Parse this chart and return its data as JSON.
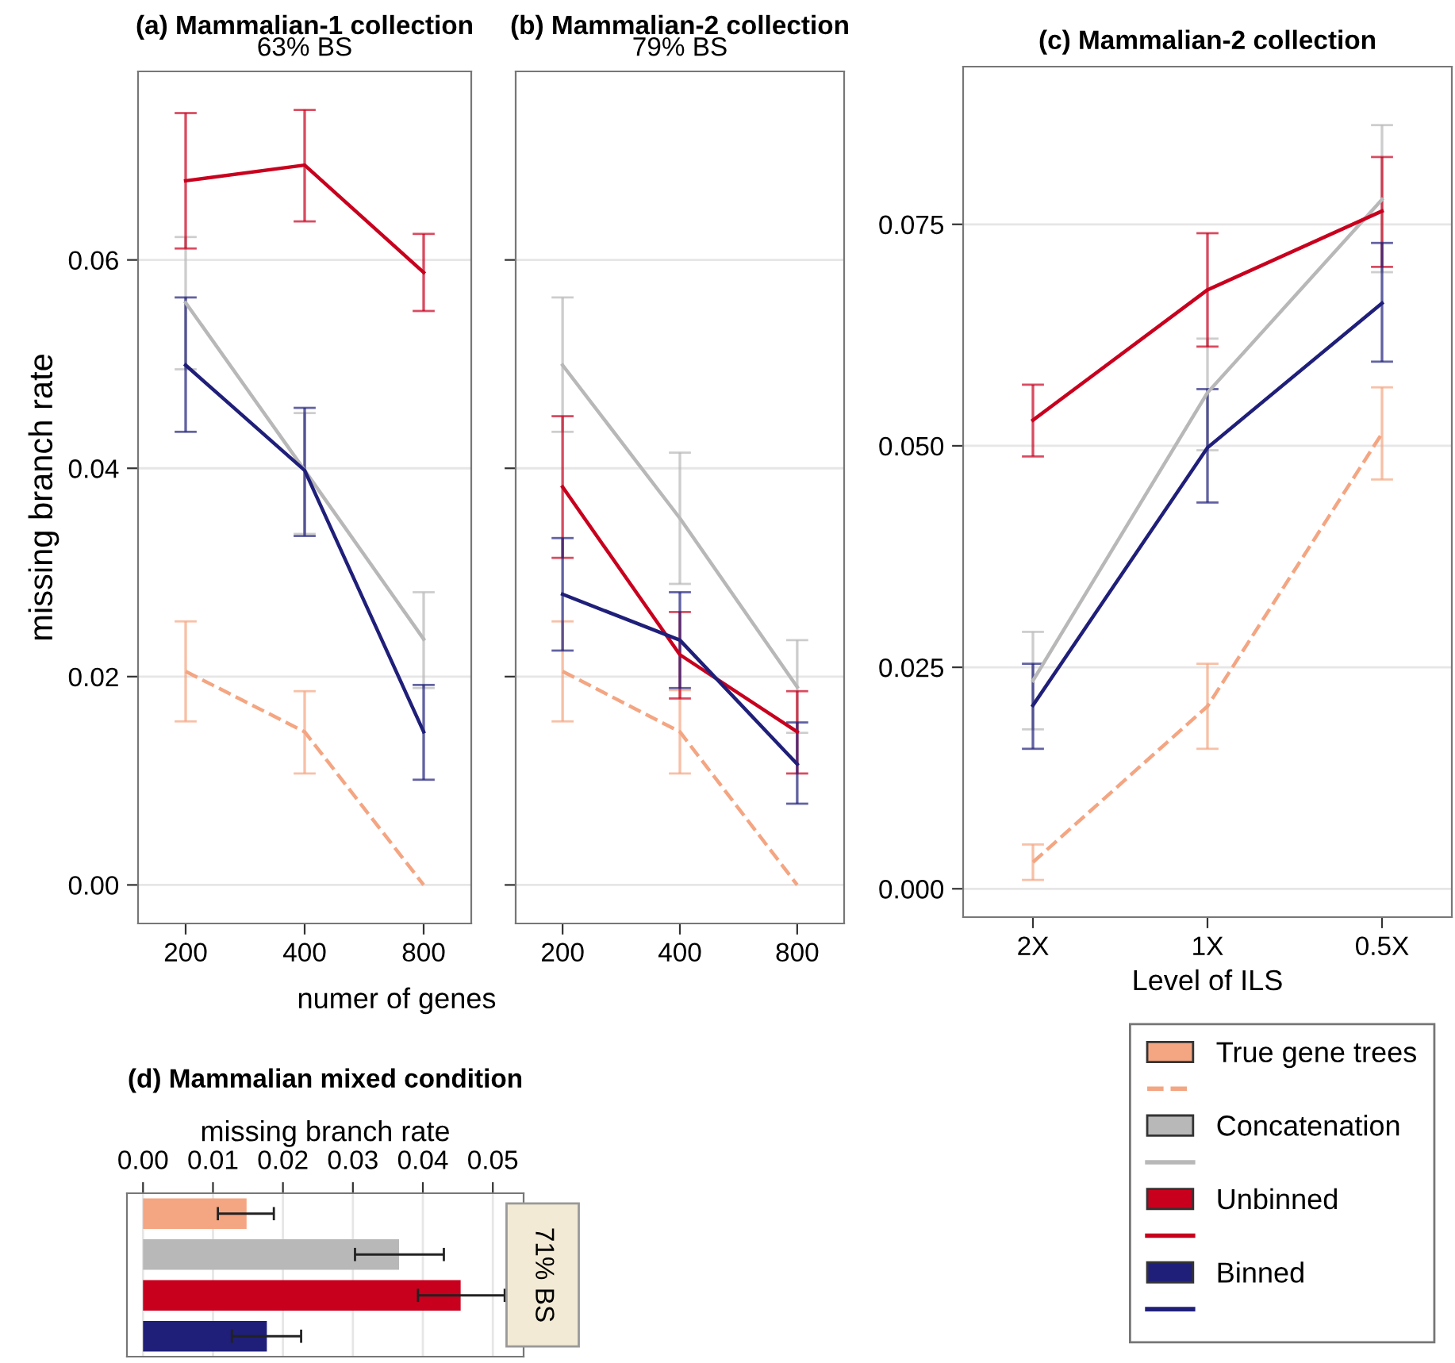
{
  "chart_data": [
    {
      "type": "line",
      "title": "(a) Mammalian-1 collection",
      "subtitle": "63% BS",
      "xlabel": "numer of genes",
      "ylabel": "missing branch rate",
      "categories": [
        "200",
        "400",
        "800"
      ],
      "ylim": [
        -0.0037,
        0.0781
      ],
      "yticks": [
        {
          "value": 0,
          "label": "0.00"
        },
        {
          "value": 0.02,
          "label": "0.02"
        },
        {
          "value": 0.04,
          "label": "0.04"
        },
        {
          "value": 0.06,
          "label": "0.06"
        }
      ],
      "grid": "y",
      "series": [
        {
          "color": "#f4a582",
          "line_style": "dashed",
          "values": [
            0.0205,
            0.0147,
            0.0
          ],
          "errors": [
            [
              0.0157,
              0.0253
            ],
            [
              0.0107,
              0.0186
            ],
            null
          ]
        },
        {
          "color": "#b8b8b8",
          "values": [
            0.0559,
            0.0398,
            0.0236
          ],
          "errors": [
            [
              0.0495,
              0.0622
            ],
            [
              0.0337,
              0.0453
            ],
            [
              0.0189,
              0.0281
            ]
          ]
        },
        {
          "color": "#c8001e",
          "values": [
            0.0676,
            0.0691,
            0.0588
          ],
          "errors": [
            [
              0.0611,
              0.0741
            ],
            [
              0.0637,
              0.0744
            ],
            [
              0.0551,
              0.0625
            ]
          ]
        },
        {
          "color": "#1f1f7a",
          "values": [
            0.0499,
            0.0398,
            0.0147
          ],
          "errors": [
            [
              0.0435,
              0.0564
            ],
            [
              0.0335,
              0.0458
            ],
            [
              0.0101,
              0.0192
            ]
          ]
        }
      ]
    },
    {
      "type": "line",
      "title": "(b) Mammalian-2 collection",
      "subtitle": "79% BS",
      "categories": [
        "200",
        "400",
        "800"
      ],
      "ylim": [
        -0.0037,
        0.0781
      ],
      "yticks": [
        {
          "value": 0,
          "label": null
        },
        {
          "value": 0.02,
          "label": null
        },
        {
          "value": 0.04,
          "label": null
        },
        {
          "value": 0.06,
          "label": null
        }
      ],
      "tick_labels": "x",
      "grid": "y",
      "series": [
        {
          "color": "#f4a582",
          "line_style": "dashed",
          "values": [
            0.0205,
            0.0147,
            0.0
          ],
          "errors": [
            [
              0.0157,
              0.0253
            ],
            [
              0.0107,
              0.0187
            ],
            null
          ]
        },
        {
          "color": "#b8b8b8",
          "values": [
            0.0499,
            0.0352,
            0.019
          ],
          "errors": [
            [
              0.0435,
              0.0564
            ],
            [
              0.0289,
              0.0415
            ],
            [
              0.0146,
              0.0235
            ]
          ]
        },
        {
          "color": "#c8001e",
          "values": [
            0.0382,
            0.0221,
            0.0147
          ],
          "errors": [
            [
              0.0314,
              0.045
            ],
            [
              0.0179,
              0.0262
            ],
            [
              0.0107,
              0.0186
            ]
          ]
        },
        {
          "color": "#1f1f7a",
          "values": [
            0.0279,
            0.0235,
            0.0116
          ],
          "errors": [
            [
              0.0225,
              0.0333
            ],
            [
              0.0189,
              0.0281
            ],
            [
              0.0078,
              0.0156
            ]
          ]
        }
      ]
    },
    {
      "type": "line",
      "title": "(c) Mammalian-2 collection",
      "xlabel": "Level of ILS",
      "categories": [
        "2X",
        "1X",
        "0.5X"
      ],
      "ylim": [
        -0.0032,
        0.0928
      ],
      "yticks": [
        {
          "value": 0,
          "label": "0.000"
        },
        {
          "value": 0.025,
          "label": "0.025"
        },
        {
          "value": 0.05,
          "label": "0.050"
        },
        {
          "value": 0.075,
          "label": "0.075"
        }
      ],
      "grid": "y",
      "legend": "bottom right",
      "series": [
        {
          "name": "True gene trees",
          "color": "#f4a582",
          "line_style": "dashed",
          "values": [
            0.003,
            0.0206,
            0.0514
          ],
          "errors": [
            [
              0.001,
              0.005
            ],
            [
              0.0158,
              0.0254
            ],
            [
              0.0462,
              0.0566
            ]
          ]
        },
        {
          "name": "Concatenation",
          "color": "#b8b8b8",
          "values": [
            0.0235,
            0.056,
            0.0778
          ],
          "errors": [
            [
              0.018,
              0.029
            ],
            [
              0.0495,
              0.0621
            ],
            [
              0.0696,
              0.0862
            ]
          ]
        },
        {
          "name": "Unbinned",
          "color": "#c8001e",
          "values": [
            0.0529,
            0.0676,
            0.0765
          ],
          "errors": [
            [
              0.0488,
              0.0569
            ],
            [
              0.0612,
              0.074
            ],
            [
              0.0702,
              0.0826
            ]
          ]
        },
        {
          "name": "Binned",
          "color": "#1f1f7a",
          "values": [
            0.0207,
            0.0498,
            0.0661
          ],
          "errors": [
            [
              0.0158,
              0.0254
            ],
            [
              0.0436,
              0.0564
            ],
            [
              0.0595,
              0.0729
            ]
          ]
        }
      ]
    },
    {
      "type": "bar",
      "orientation": "horizontal",
      "title": "(d) Mammalian mixed condition",
      "xlabel": "missing branch rate",
      "categories": [
        null,
        null,
        null,
        null
      ],
      "xlim": [
        -0.0023,
        0.0544
      ],
      "xticks": [
        {
          "value": 0,
          "label": "0.00"
        },
        {
          "value": 0.01,
          "label": "0.01"
        },
        {
          "value": 0.02,
          "label": "0.02"
        },
        {
          "value": 0.03,
          "label": "0.03"
        },
        {
          "value": 0.04,
          "label": "0.04"
        },
        {
          "value": 0.05,
          "label": "0.05"
        }
      ],
      "grid": "x",
      "annotations": [
        "71% BS"
      ],
      "values": [
        0.0148,
        0.0366,
        0.0454,
        0.0177
      ],
      "colors": [
        "#f4a582",
        "#b8b8b8",
        "#c8001e",
        "#1f1f7a"
      ],
      "errors": [
        [
          0.0107,
          0.0187
        ],
        [
          0.0303,
          0.043
        ],
        [
          0.0393,
          0.0517
        ],
        [
          0.0127,
          0.0226
        ]
      ]
    }
  ]
}
